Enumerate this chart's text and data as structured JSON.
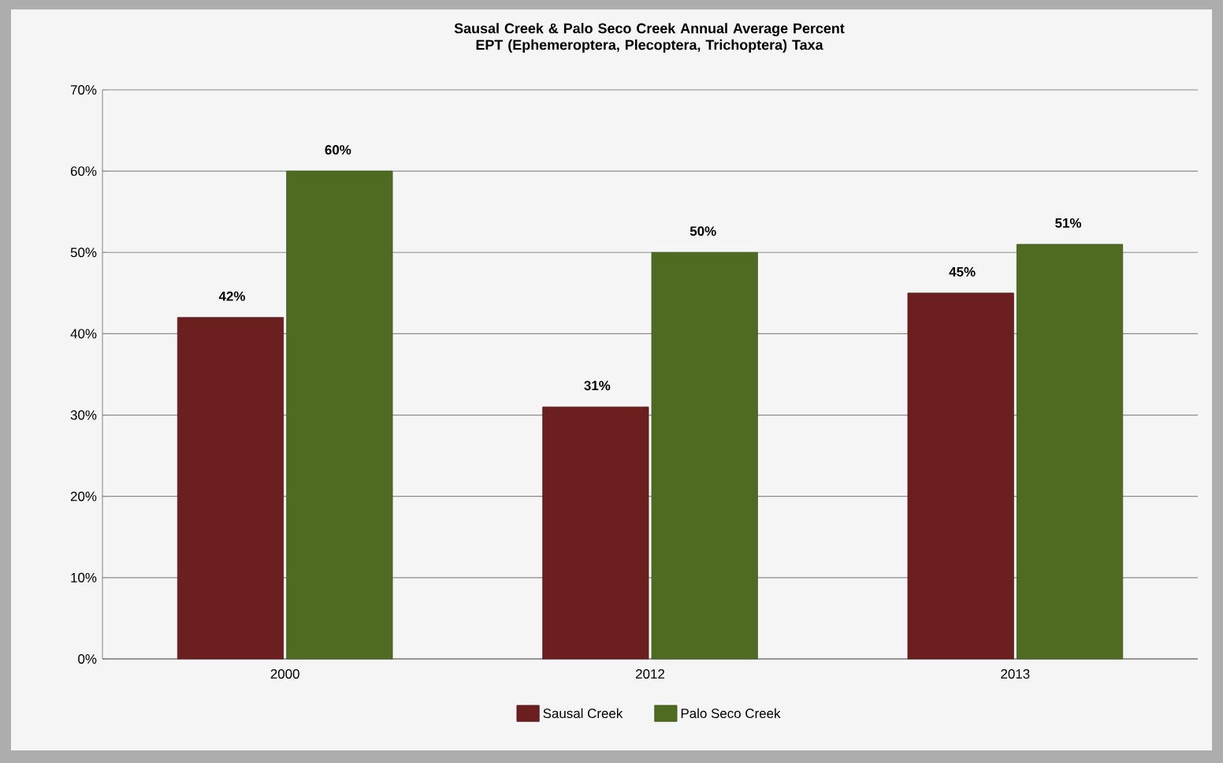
{
  "chart_data": {
    "type": "bar",
    "title": "Sausal Creek & Palo Seco Creek Annual Average Percent EPT (Ephemeroptera, Plecoptera, Trichoptera) Taxa",
    "categories": [
      "2000",
      "2012",
      "2013"
    ],
    "series": [
      {
        "name": "Sausal Creek",
        "color": "#6b1f1f",
        "values": [
          42,
          31,
          45
        ],
        "value_labels": [
          "42%",
          "31%",
          "45%"
        ]
      },
      {
        "name": "Palo Seco Creek",
        "color": "#4f6b22",
        "values": [
          60,
          50,
          51
        ],
        "value_labels": [
          "60%",
          "50%",
          "51%"
        ]
      }
    ],
    "ylim": [
      0,
      70
    ],
    "yticks": [
      {
        "value": 0,
        "label": "0%"
      },
      {
        "value": 10,
        "label": "10%"
      },
      {
        "value": 20,
        "label": "20%"
      },
      {
        "value": 30,
        "label": "30%"
      },
      {
        "value": 40,
        "label": "40%"
      },
      {
        "value": 50,
        "label": "50%"
      },
      {
        "value": 60,
        "label": "60%"
      },
      {
        "value": 70,
        "label": "70%"
      }
    ],
    "grid": "y",
    "legend": "bottom"
  }
}
